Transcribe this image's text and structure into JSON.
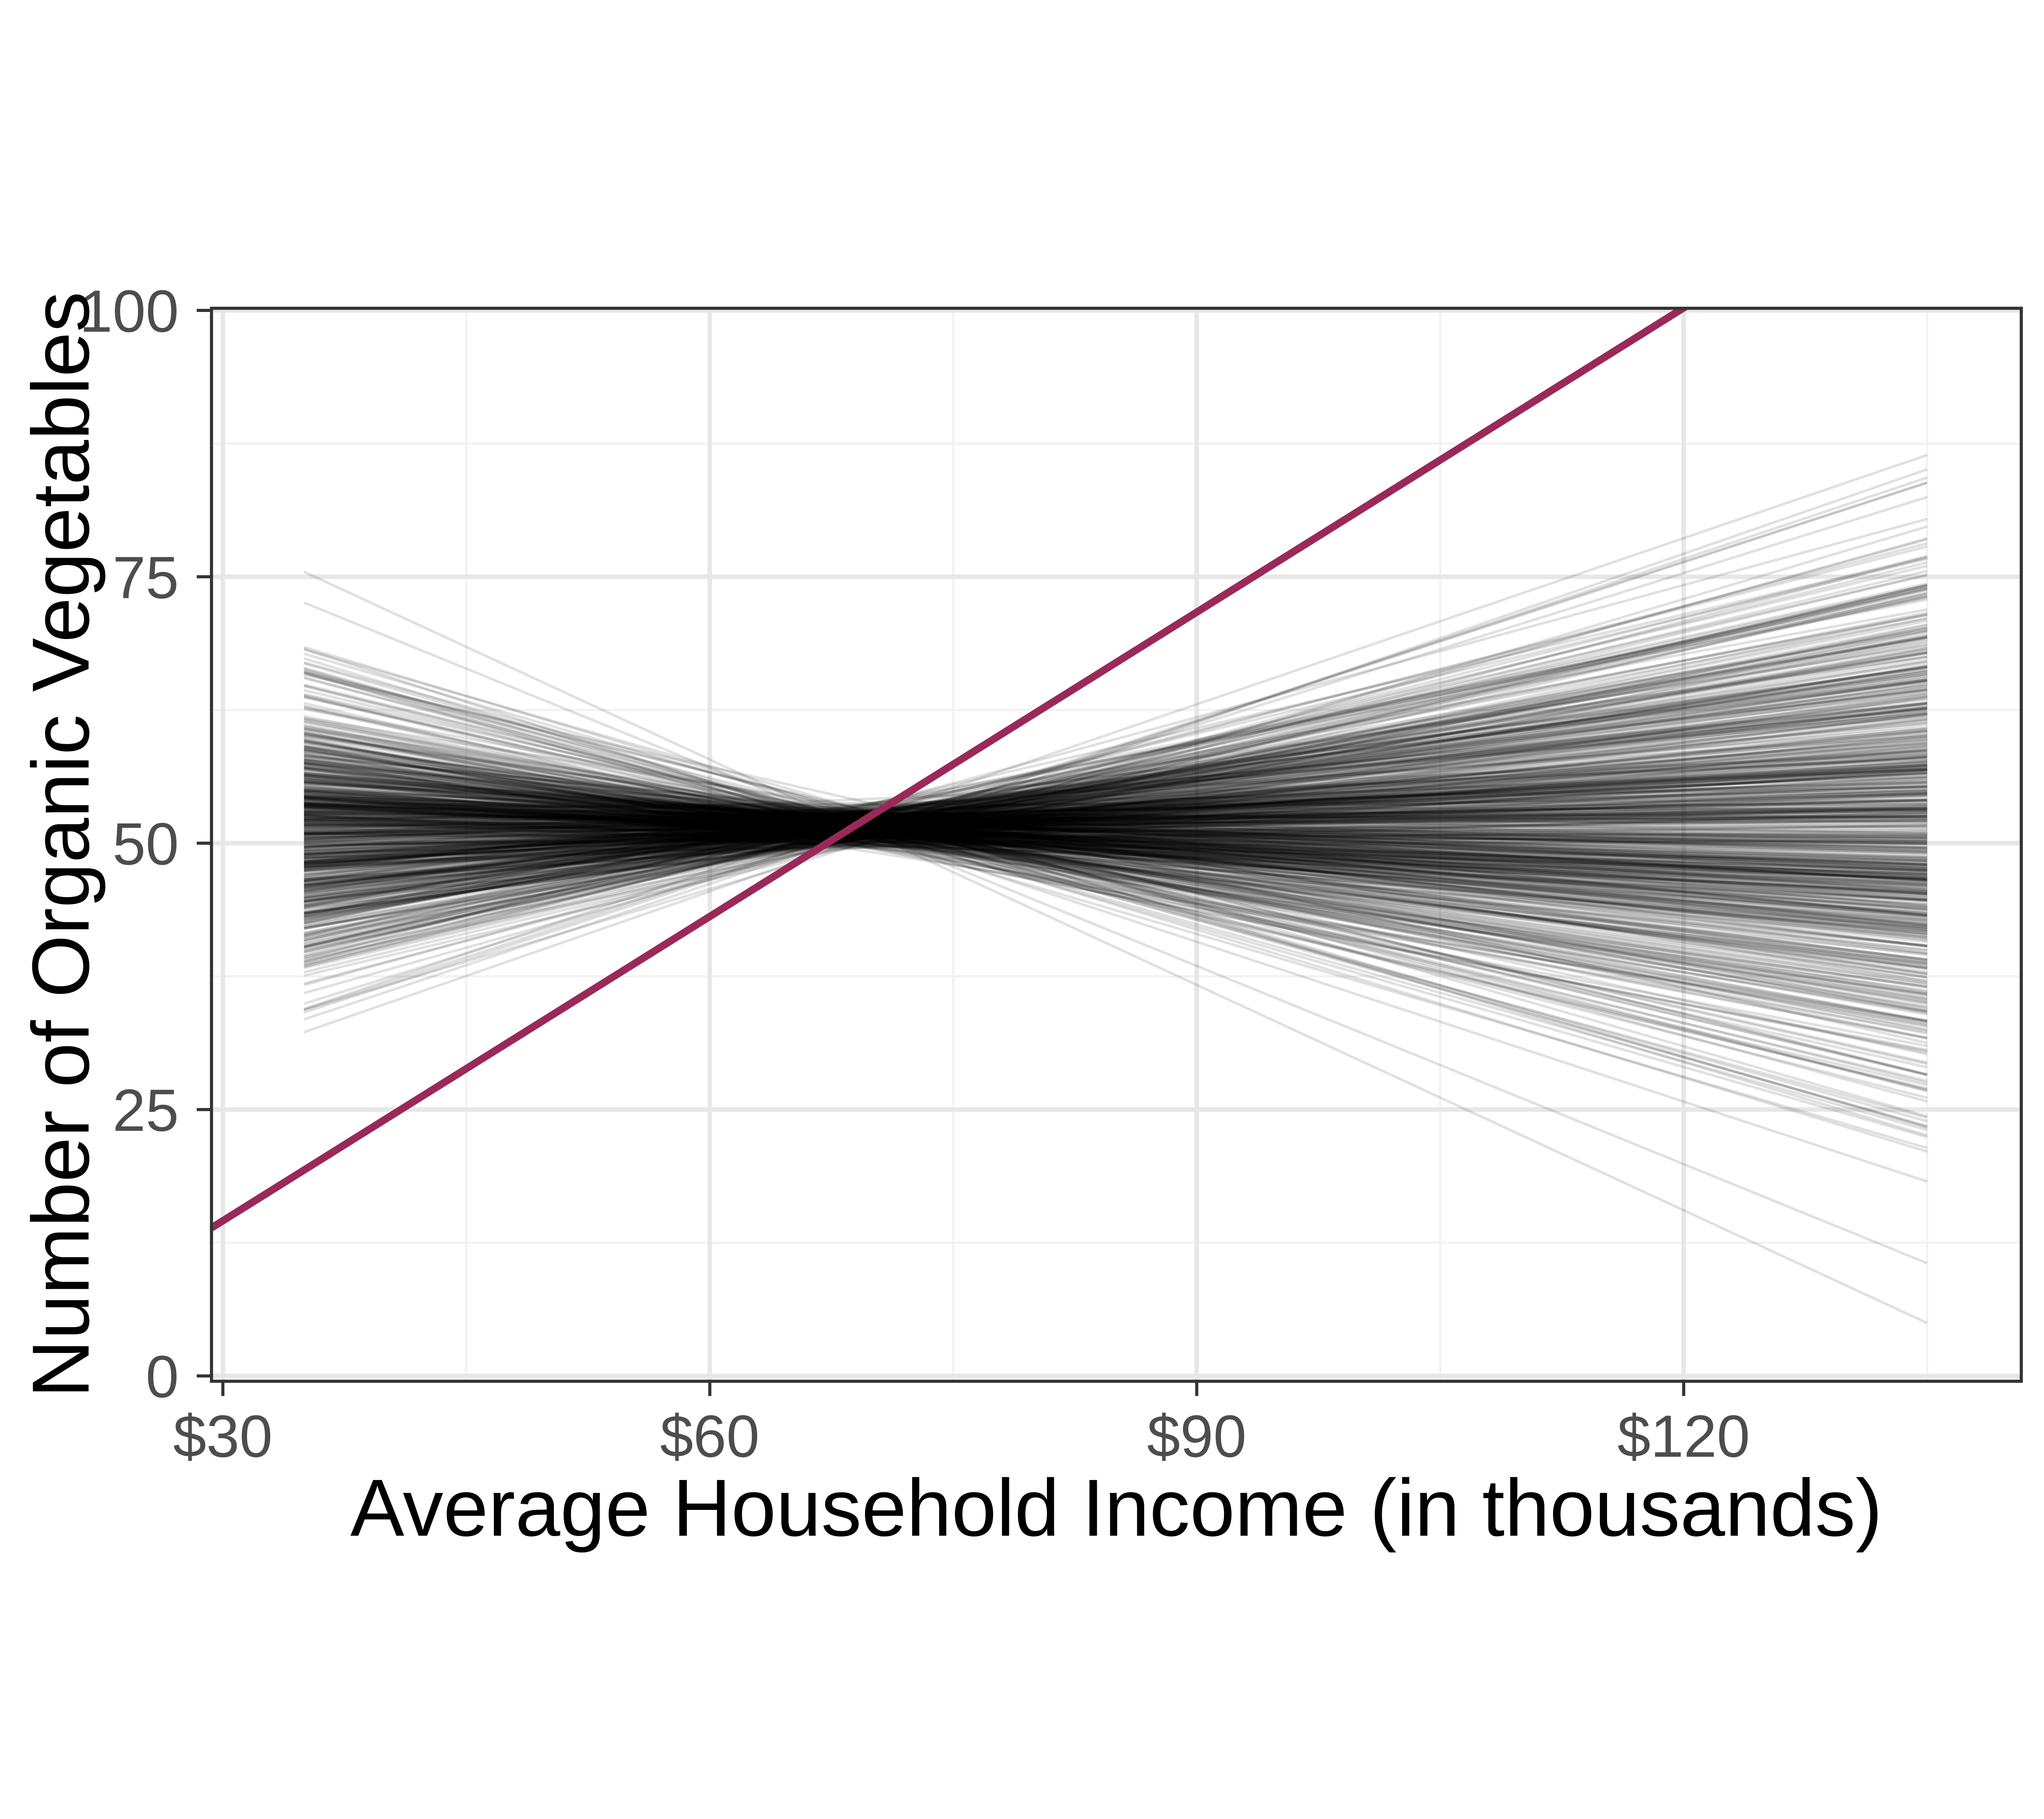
{
  "chart_data": {
    "type": "line",
    "title": "",
    "xlabel": "Average Household Income (in thousands)",
    "ylabel": "Number of Organic Vegetables",
    "legend_position": "none",
    "grid": "major-and-minor",
    "x_axis": {
      "range": [
        29.3,
        140.8
      ],
      "ticks": [
        30,
        60,
        90,
        120
      ],
      "tick_labels": [
        "$30",
        "$60",
        "$90",
        "$120"
      ],
      "minor_ticks": [
        45,
        75,
        105,
        135
      ]
    },
    "y_axis": {
      "range": [
        -0.5,
        100.2
      ],
      "ticks": [
        0,
        25,
        50,
        75,
        100
      ],
      "tick_labels": [
        "0",
        "25",
        "50",
        "75",
        "100"
      ],
      "minor_ticks": [
        12.5,
        37.5,
        62.5,
        87.5
      ]
    },
    "series": [
      {
        "name": "bootstrap-regression-lines",
        "kind": "ensemble",
        "n": 700,
        "x_span": [
          35,
          135
        ],
        "pivot": {
          "x": 69,
          "y": 51.5,
          "x_sd": 1.1,
          "y_sd": 0.85
        },
        "slope": {
          "mean": 0.015,
          "sd": 0.195,
          "min": -0.555,
          "max": 0.555
        },
        "extra_slopes": [
          -0.705,
          -0.62
        ],
        "seed": 20240607,
        "color": "#000000",
        "opacity": 0.12,
        "width": 9
      },
      {
        "name": "reference-line",
        "kind": "abline",
        "slope": 0.952,
        "intercept": -14,
        "color": "#9a295a",
        "width": 26
      }
    ],
    "colors": {
      "background": "#ffffff",
      "panel_background": "#ffffff",
      "panel_border": "#333333",
      "tick_mark": "#333333",
      "grid_major": "#e7e7e7",
      "grid_minor": "#f2f2f2",
      "axis_text": "#4d4d4d",
      "axis_title": "#000000"
    }
  }
}
